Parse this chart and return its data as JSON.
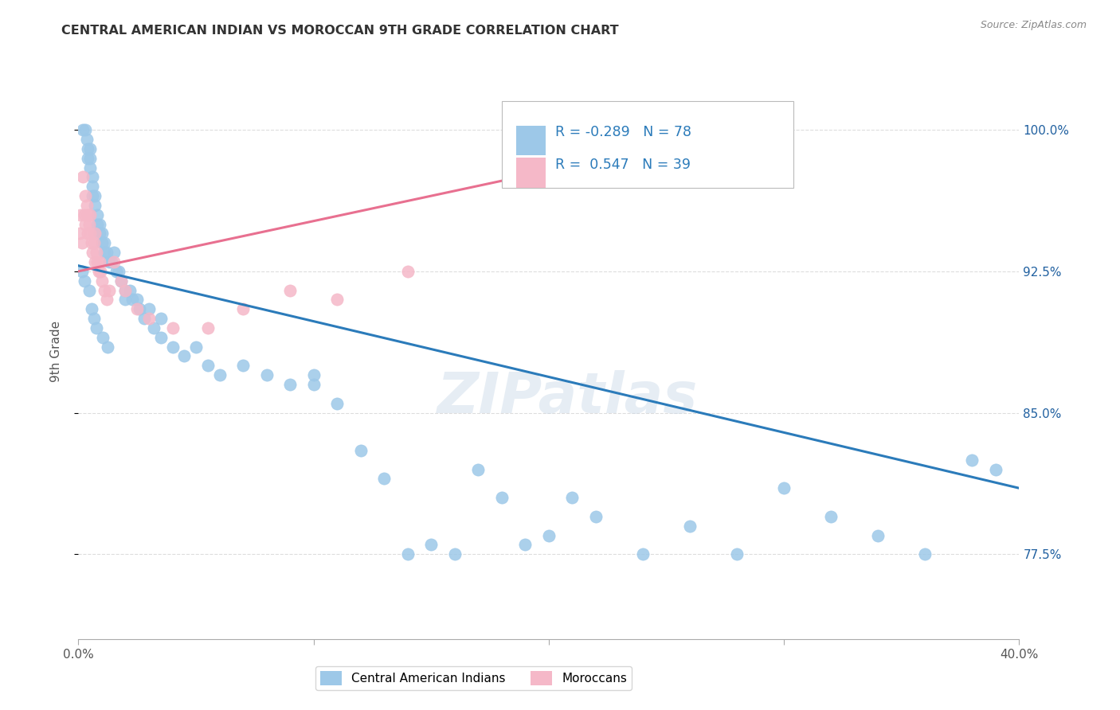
{
  "title": "CENTRAL AMERICAN INDIAN VS MOROCCAN 9TH GRADE CORRELATION CHART",
  "source": "Source: ZipAtlas.com",
  "ylabel": "9th Grade",
  "xlim": [
    0.0,
    40.0
  ],
  "ylim": [
    73.0,
    103.5
  ],
  "yticks": [
    77.5,
    85.0,
    92.5,
    100.0
  ],
  "ytick_labels": [
    "77.5%",
    "85.0%",
    "92.5%",
    "100.0%"
  ],
  "xticks": [
    0.0,
    10.0,
    20.0,
    30.0,
    40.0
  ],
  "blue_R": -0.289,
  "blue_N": 78,
  "pink_R": 0.547,
  "pink_N": 39,
  "blue_color": "#9DC8E8",
  "pink_color": "#F5B8C8",
  "blue_line_color": "#2B7BBA",
  "pink_line_color": "#E87090",
  "background_color": "#FFFFFF",
  "grid_color": "#DDDDDD",
  "blue_line_x0": 0.0,
  "blue_line_y0": 92.8,
  "blue_line_x1": 40.0,
  "blue_line_y1": 81.0,
  "pink_line_x0": 0.0,
  "pink_line_y0": 92.5,
  "pink_line_x1": 30.0,
  "pink_line_y1": 100.5,
  "blue_x": [
    0.2,
    0.3,
    0.35,
    0.4,
    0.4,
    0.5,
    0.5,
    0.5,
    0.6,
    0.6,
    0.6,
    0.7,
    0.7,
    0.8,
    0.8,
    0.9,
    0.9,
    1.0,
    1.0,
    1.1,
    1.1,
    1.2,
    1.3,
    1.4,
    1.5,
    1.6,
    1.7,
    1.8,
    2.0,
    2.0,
    2.2,
    2.3,
    2.5,
    2.6,
    2.8,
    3.0,
    3.2,
    3.5,
    3.5,
    4.0,
    4.5,
    5.0,
    5.5,
    6.0,
    7.0,
    8.0,
    9.0,
    10.0,
    10.0,
    11.0,
    12.0,
    13.0,
    14.0,
    15.0,
    16.0,
    17.0,
    18.0,
    19.0,
    20.0,
    21.0,
    22.0,
    24.0,
    26.0,
    28.0,
    30.0,
    32.0,
    34.0,
    36.0,
    38.0,
    39.0,
    0.15,
    0.25,
    0.45,
    0.55,
    0.65,
    0.75,
    1.05,
    1.25
  ],
  "blue_y": [
    100.0,
    100.0,
    99.5,
    99.0,
    98.5,
    99.0,
    98.5,
    98.0,
    97.5,
    97.0,
    96.5,
    96.5,
    96.0,
    95.5,
    95.0,
    95.0,
    94.5,
    94.5,
    94.0,
    94.0,
    93.5,
    93.5,
    93.0,
    93.0,
    93.5,
    92.5,
    92.5,
    92.0,
    91.5,
    91.0,
    91.5,
    91.0,
    91.0,
    90.5,
    90.0,
    90.5,
    89.5,
    90.0,
    89.0,
    88.5,
    88.0,
    88.5,
    87.5,
    87.0,
    87.5,
    87.0,
    86.5,
    87.0,
    86.5,
    85.5,
    83.0,
    81.5,
    77.5,
    78.0,
    77.5,
    82.0,
    80.5,
    78.0,
    78.5,
    80.5,
    79.5,
    77.5,
    79.0,
    77.5,
    81.0,
    79.5,
    78.5,
    77.5,
    82.5,
    82.0,
    92.5,
    92.0,
    91.5,
    90.5,
    90.0,
    89.5,
    89.0,
    88.5
  ],
  "pink_x": [
    0.05,
    0.1,
    0.15,
    0.2,
    0.25,
    0.3,
    0.3,
    0.35,
    0.4,
    0.4,
    0.45,
    0.5,
    0.5,
    0.55,
    0.6,
    0.65,
    0.7,
    0.7,
    0.75,
    0.8,
    0.85,
    0.9,
    0.95,
    1.0,
    1.1,
    1.2,
    1.3,
    1.5,
    1.8,
    2.0,
    2.5,
    3.0,
    4.0,
    5.5,
    7.0,
    9.0,
    11.0,
    14.0,
    30.0
  ],
  "pink_y": [
    94.5,
    95.5,
    94.0,
    97.5,
    95.5,
    96.5,
    95.0,
    96.0,
    95.5,
    94.5,
    95.0,
    94.5,
    95.5,
    94.0,
    93.5,
    94.0,
    93.0,
    94.5,
    93.5,
    93.0,
    92.5,
    93.0,
    92.5,
    92.0,
    91.5,
    91.0,
    91.5,
    93.0,
    92.0,
    91.5,
    90.5,
    90.0,
    89.5,
    89.5,
    90.5,
    91.5,
    91.0,
    92.5,
    100.5
  ]
}
